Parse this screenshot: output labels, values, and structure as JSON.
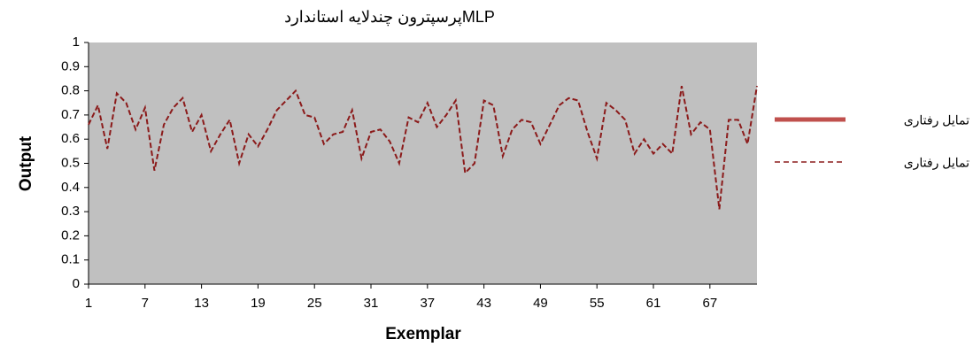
{
  "chart_data": {
    "type": "line",
    "title": "پرسپترون چندلایه استانداردMLP",
    "x_label": "Exemplar",
    "y_label": "Output",
    "categories": [
      "1",
      null,
      null,
      null,
      null,
      null,
      "7",
      null,
      null,
      null,
      null,
      null,
      "13",
      null,
      null,
      null,
      null,
      null,
      "19",
      null,
      null,
      null,
      null,
      null,
      "25",
      null,
      null,
      null,
      null,
      null,
      "31",
      null,
      null,
      null,
      null,
      null,
      "37",
      null,
      null,
      null,
      null,
      null,
      "43",
      null,
      null,
      null,
      null,
      null,
      "49",
      null,
      null,
      null,
      null,
      null,
      "55",
      null,
      null,
      null,
      null,
      null,
      "61",
      null,
      null,
      null,
      null,
      null,
      "67",
      null,
      null,
      null,
      null,
      null
    ],
    "series": [
      {
        "name": "تمایل رفتاری",
        "color": "#c0504d",
        "line_style": "solid",
        "values": [
          null,
          null,
          null,
          null,
          null,
          null,
          null,
          null,
          null,
          null,
          null,
          null,
          null,
          null,
          null,
          null,
          null,
          null,
          null,
          null,
          null,
          null,
          null,
          null,
          null,
          null,
          null,
          null,
          null,
          null,
          null,
          null,
          null,
          null,
          null,
          null,
          null,
          null,
          null,
          null,
          null,
          null,
          null,
          null,
          null,
          null,
          null,
          null,
          null,
          null,
          null,
          null,
          null,
          null,
          null,
          null,
          null,
          null,
          null,
          null,
          null,
          null,
          null,
          null,
          null,
          null,
          null,
          null,
          null,
          null,
          null,
          null
        ]
      },
      {
        "name": "تمایل رفتاری",
        "color": "#8b1a1a",
        "line_style": "dashed",
        "values": [
          0.66,
          0.74,
          0.56,
          0.79,
          0.75,
          0.64,
          0.73,
          0.47,
          0.66,
          0.73,
          0.77,
          0.63,
          0.7,
          0.55,
          0.62,
          0.68,
          0.5,
          0.62,
          0.57,
          0.64,
          0.72,
          0.76,
          0.8,
          0.7,
          0.69,
          0.58,
          0.62,
          0.63,
          0.72,
          0.52,
          0.63,
          0.64,
          0.59,
          0.5,
          0.69,
          0.67,
          0.75,
          0.65,
          0.7,
          0.76,
          0.46,
          0.5,
          0.76,
          0.74,
          0.53,
          0.64,
          0.68,
          0.67,
          0.58,
          0.66,
          0.74,
          0.77,
          0.76,
          0.63,
          0.52,
          0.75,
          0.72,
          0.68,
          0.54,
          0.6,
          0.54,
          0.58,
          0.54,
          0.82,
          0.62,
          0.67,
          0.64,
          0.31,
          0.68,
          0.68,
          0.58,
          0.82
        ]
      }
    ],
    "ylim": [
      0,
      1
    ],
    "yticks": [
      0,
      0.1,
      0.2,
      0.3,
      0.4,
      0.5,
      0.6,
      0.7,
      0.8,
      0.9,
      1
    ],
    "legend": "right"
  }
}
